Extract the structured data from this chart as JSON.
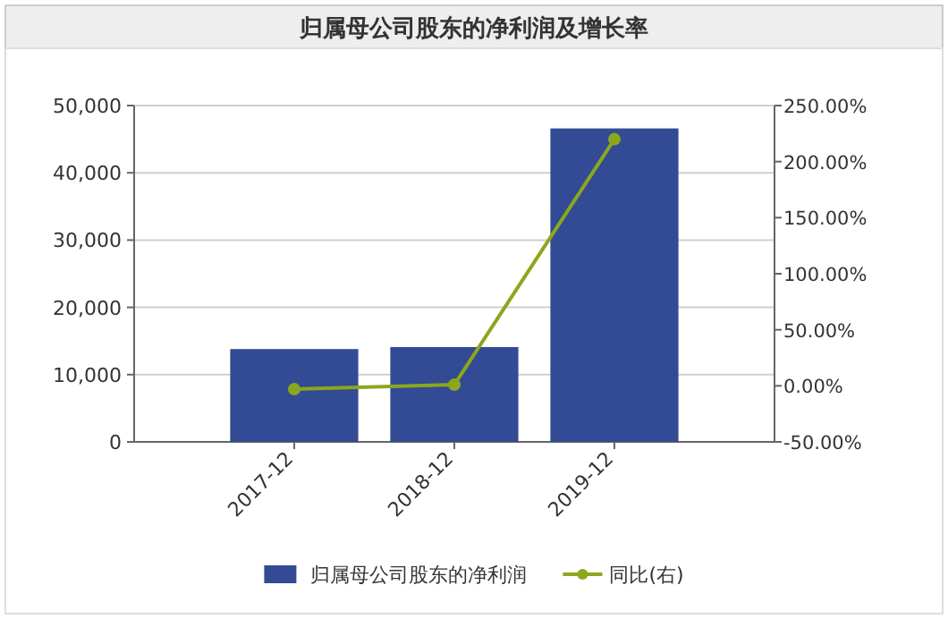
{
  "chart_data": {
    "type": "bar",
    "title": "归属母公司股东的净利润及增长率",
    "categories": [
      "2017-12",
      "2018-12",
      "2019-12"
    ],
    "series": [
      {
        "name": "归属母公司股东的净利润",
        "color": "#334a94",
        "values": [
          13800,
          14100,
          46600
        ]
      },
      {
        "name": "同比(右)",
        "type": "line",
        "axis": "y2",
        "color": "#8ba71d",
        "marker": "circle",
        "values": [
          -3,
          1,
          220
        ]
      }
    ],
    "ylim": [
      0,
      50000
    ],
    "yticks": [
      0,
      {
        "value": 10000,
        "label": "10,000"
      },
      {
        "value": 20000,
        "label": "20,000"
      },
      {
        "value": 30000,
        "label": "30,000"
      },
      {
        "value": 40000,
        "label": "40,000"
      },
      {
        "value": 50000,
        "label": "50,000"
      }
    ],
    "y2lim": [
      -50,
      250
    ],
    "y2ticks": [
      {
        "value": -50,
        "label": "-50.00%"
      },
      {
        "value": 0,
        "label": "0.00%"
      },
      {
        "value": 50,
        "label": "50.00%"
      },
      {
        "value": 100,
        "label": "100.00%"
      },
      {
        "value": 150,
        "label": "150.00%"
      },
      {
        "value": 200,
        "label": "200.00%"
      },
      {
        "value": 250,
        "label": "250.00%"
      }
    ],
    "grid": "y",
    "legend": "bottom"
  }
}
